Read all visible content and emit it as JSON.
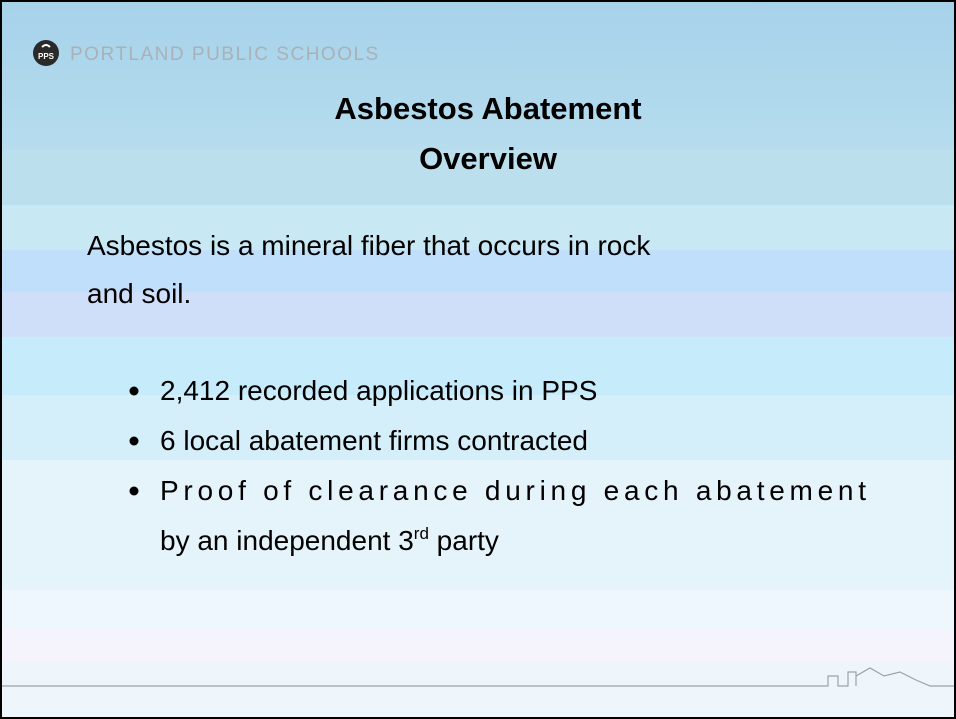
{
  "header": {
    "organization": "PORTLAND PUBLIC SCHOOLS"
  },
  "title": {
    "lines": [
      "Asbestos Abatement",
      "Overview"
    ]
  },
  "intro": {
    "lines": [
      "Asbestos is a mineral fiber that occurs in rock",
      "and soil."
    ]
  },
  "bullets": [
    {
      "lines": [
        [
          "2,412 recorded applications in PPS"
        ]
      ]
    },
    {
      "lines": [
        [
          "6 local abatement firms contracted"
        ]
      ]
    },
    {
      "lines": [
        [
          "Proof of clearance during each abatement"
        ],
        [
          "by an independent 3",
          "rd",
          " party"
        ]
      ]
    }
  ]
}
